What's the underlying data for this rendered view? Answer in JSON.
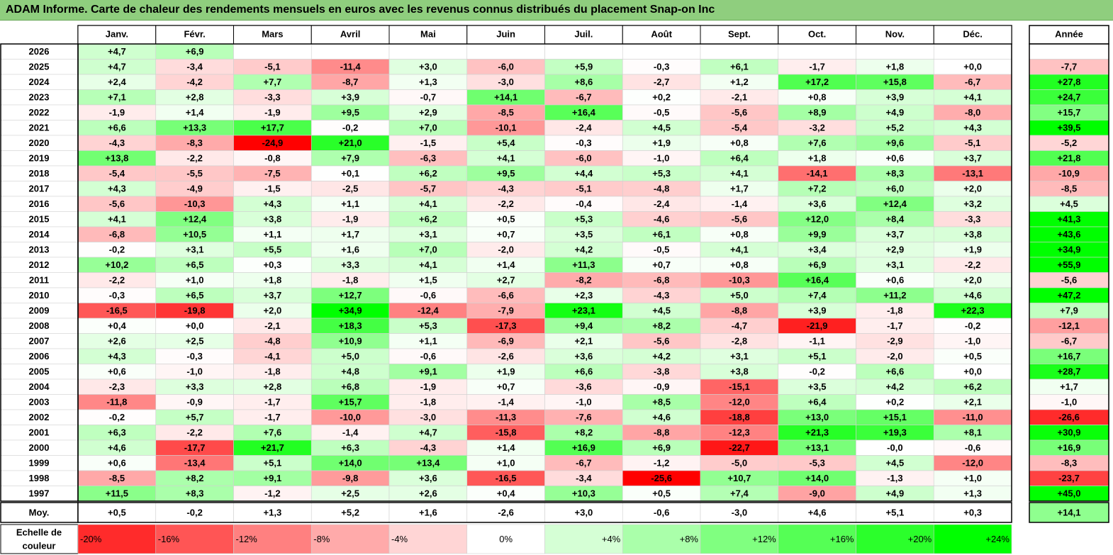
{
  "title": "ADAM Informe. Carte de chaleur des rendements mensuels en euros avec les revenus connus distribués du placement Snap-on Inc",
  "chart_data": {
    "type": "heatmap",
    "title": "ADAM Informe. Carte de chaleur des rendements mensuels en euros avec les revenus connus distribués du placement Snap-on Inc",
    "columns": [
      "Janv.",
      "Févr.",
      "Mars",
      "Avril",
      "Mai",
      "Juin",
      "Juil.",
      "Août",
      "Sept.",
      "Oct.",
      "Nov.",
      "Déc."
    ],
    "year_header": "Année",
    "rows": [
      {
        "label": "2026",
        "values": [
          "+4,7",
          "+6,9",
          null,
          null,
          null,
          null,
          null,
          null,
          null,
          null,
          null,
          null
        ],
        "year": null
      },
      {
        "label": "2025",
        "values": [
          "+4,7",
          "-3,4",
          "-5,1",
          "-11,4",
          "+3,0",
          "-6,0",
          "+5,9",
          "-0,3",
          "+6,1",
          "-1,7",
          "+1,8",
          "+0,0"
        ],
        "year": "-7,7"
      },
      {
        "label": "2024",
        "values": [
          "+2,4",
          "-4,2",
          "+7,7",
          "-8,7",
          "+1,3",
          "-3,0",
          "+8,6",
          "-2,7",
          "+1,2",
          "+17,2",
          "+15,8",
          "-6,7"
        ],
        "year": "+27,8"
      },
      {
        "label": "2023",
        "values": [
          "+7,1",
          "+2,8",
          "-3,3",
          "+3,9",
          "-0,7",
          "+14,1",
          "-6,7",
          "+0,2",
          "-2,1",
          "+0,8",
          "+3,9",
          "+4,1"
        ],
        "year": "+24,7"
      },
      {
        "label": "2022",
        "values": [
          "-1,9",
          "+1,4",
          "-1,9",
          "+9,5",
          "+2,9",
          "-8,5",
          "+16,4",
          "-0,5",
          "-5,6",
          "+8,9",
          "+4,9",
          "-8,0"
        ],
        "year": "+15,7"
      },
      {
        "label": "2021",
        "values": [
          "+6,6",
          "+13,3",
          "+17,7",
          "-0,2",
          "+7,0",
          "-10,1",
          "-2,4",
          "+4,5",
          "-5,4",
          "-3,2",
          "+5,2",
          "+4,3"
        ],
        "year": "+39,5"
      },
      {
        "label": "2020",
        "values": [
          "-4,3",
          "-8,3",
          "-24,9",
          "+21,0",
          "-1,5",
          "+5,4",
          "-0,3",
          "+1,9",
          "+0,8",
          "+7,6",
          "+9,6",
          "-5,1"
        ],
        "year": "-5,2"
      },
      {
        "label": "2019",
        "values": [
          "+13,8",
          "-2,2",
          "-0,8",
          "+7,9",
          "-6,3",
          "+4,1",
          "-6,0",
          "-1,0",
          "+6,4",
          "+1,8",
          "+0,6",
          "+3,7"
        ],
        "year": "+21,8"
      },
      {
        "label": "2018",
        "values": [
          "-5,4",
          "-5,5",
          "-7,5",
          "+0,1",
          "+6,2",
          "+9,5",
          "+4,4",
          "+5,3",
          "+4,1",
          "-14,1",
          "+8,3",
          "-13,1"
        ],
        "year": "-10,9"
      },
      {
        "label": "2017",
        "values": [
          "+4,3",
          "-4,9",
          "-1,5",
          "-2,5",
          "-5,7",
          "-4,3",
          "-5,1",
          "-4,8",
          "+1,7",
          "+7,2",
          "+6,0",
          "+2,0"
        ],
        "year": "-8,5"
      },
      {
        "label": "2016",
        "values": [
          "-5,6",
          "-10,3",
          "+4,3",
          "+1,1",
          "+4,1",
          "-2,2",
          "-0,4",
          "-2,4",
          "-1,4",
          "+3,6",
          "+12,4",
          "+3,2"
        ],
        "year": "+4,5"
      },
      {
        "label": "2015",
        "values": [
          "+4,1",
          "+12,4",
          "+3,8",
          "-1,9",
          "+6,2",
          "+0,5",
          "+5,3",
          "-4,6",
          "-5,6",
          "+12,0",
          "+8,4",
          "-3,3"
        ],
        "year": "+41,3"
      },
      {
        "label": "2014",
        "values": [
          "-6,8",
          "+10,5",
          "+1,1",
          "+1,7",
          "+3,1",
          "+0,7",
          "+3,5",
          "+6,1",
          "+0,8",
          "+9,9",
          "+3,7",
          "+3,8"
        ],
        "year": "+43,6"
      },
      {
        "label": "2013",
        "values": [
          "-0,2",
          "+3,1",
          "+5,5",
          "+1,6",
          "+7,0",
          "-2,0",
          "+4,2",
          "-0,5",
          "+4,1",
          "+3,4",
          "+2,9",
          "+1,9"
        ],
        "year": "+34,9"
      },
      {
        "label": "2012",
        "values": [
          "+10,2",
          "+6,5",
          "+0,3",
          "+3,3",
          "+4,1",
          "+1,4",
          "+11,3",
          "+0,7",
          "+0,8",
          "+6,9",
          "+3,1",
          "-2,2"
        ],
        "year": "+55,9"
      },
      {
        "label": "2011",
        "values": [
          "-2,2",
          "+1,0",
          "+1,8",
          "-1,8",
          "+1,5",
          "+2,7",
          "-8,2",
          "-6,8",
          "-10,3",
          "+16,4",
          "+0,6",
          "+2,0"
        ],
        "year": "-5,6"
      },
      {
        "label": "2010",
        "values": [
          "-0,3",
          "+6,5",
          "+3,7",
          "+12,7",
          "-0,6",
          "-6,6",
          "+2,3",
          "-4,3",
          "+5,0",
          "+7,4",
          "+11,2",
          "+4,6"
        ],
        "year": "+47,2"
      },
      {
        "label": "2009",
        "values": [
          "-16,5",
          "-19,8",
          "+2,0",
          "+34,9",
          "-12,4",
          "-7,9",
          "+23,1",
          "+4,5",
          "-8,8",
          "+3,9",
          "-1,8",
          "+22,3"
        ],
        "year": "+7,9"
      },
      {
        "label": "2008",
        "values": [
          "+0,4",
          "+0,0",
          "-2,1",
          "+18,3",
          "+5,3",
          "-17,3",
          "+9,4",
          "+8,2",
          "-4,7",
          "-21,9",
          "-1,7",
          "-0,2"
        ],
        "year": "-12,1"
      },
      {
        "label": "2007",
        "values": [
          "+2,6",
          "+2,5",
          "-4,8",
          "+10,9",
          "+1,1",
          "-6,9",
          "+2,1",
          "-5,6",
          "-2,8",
          "-1,1",
          "-2,9",
          "-1,0"
        ],
        "year": "-6,7"
      },
      {
        "label": "2006",
        "values": [
          "+4,3",
          "-0,3",
          "-4,1",
          "+5,0",
          "-0,6",
          "-2,6",
          "+3,6",
          "+4,2",
          "+3,1",
          "+5,1",
          "-2,0",
          "+0,5"
        ],
        "year": "+16,7"
      },
      {
        "label": "2005",
        "values": [
          "+0,6",
          "-1,0",
          "-1,8",
          "+4,8",
          "+9,1",
          "+1,9",
          "+6,6",
          "-3,8",
          "+3,8",
          "-0,2",
          "+6,6",
          "+0,0"
        ],
        "year": "+28,7"
      },
      {
        "label": "2004",
        "values": [
          "-2,3",
          "+3,3",
          "+2,8",
          "+6,8",
          "-1,9",
          "+0,7",
          "-3,6",
          "-0,9",
          "-15,1",
          "+3,5",
          "+4,2",
          "+6,2"
        ],
        "year": "+1,7"
      },
      {
        "label": "2003",
        "values": [
          "-11,8",
          "-0,9",
          "-1,7",
          "+15,7",
          "-1,8",
          "-1,4",
          "-1,0",
          "+8,5",
          "-12,0",
          "+6,4",
          "+0,2",
          "+2,1"
        ],
        "year": "-1,0"
      },
      {
        "label": "2002",
        "values": [
          "-0,2",
          "+5,7",
          "-1,7",
          "-10,0",
          "-3,0",
          "-11,3",
          "-7,6",
          "+4,6",
          "-18,8",
          "+13,0",
          "+15,1",
          "-11,0"
        ],
        "year": "-26,6"
      },
      {
        "label": "2001",
        "values": [
          "+6,3",
          "-2,2",
          "+7,6",
          "-1,4",
          "+4,7",
          "-15,8",
          "+8,2",
          "-8,8",
          "-12,3",
          "+21,3",
          "+19,3",
          "+8,1"
        ],
        "year": "+30,9"
      },
      {
        "label": "2000",
        "values": [
          "+4,6",
          "-17,7",
          "+21,7",
          "+6,3",
          "-4,3",
          "+1,4",
          "+16,9",
          "+6,9",
          "-22,7",
          "+13,1",
          "-0,0",
          "-0,6"
        ],
        "year": "+16,9"
      },
      {
        "label": "1999",
        "values": [
          "+0,6",
          "-13,4",
          "+5,1",
          "+14,0",
          "+13,4",
          "+1,0",
          "-6,7",
          "-1,2",
          "-5,0",
          "-5,3",
          "+4,5",
          "-12,0"
        ],
        "year": "-8,3"
      },
      {
        "label": "1998",
        "values": [
          "-8,5",
          "+8,2",
          "+9,1",
          "-9,8",
          "+3,6",
          "-16,5",
          "-3,4",
          "-25,6",
          "+10,7",
          "+14,0",
          "-1,3",
          "+1,0"
        ],
        "year": "-23,7"
      },
      {
        "label": "1997",
        "values": [
          "+11,5",
          "+8,3",
          "-1,2",
          "+2,5",
          "+2,6",
          "+0,4",
          "+10,3",
          "+0,5",
          "+7,4",
          "-9,0",
          "+4,9",
          "+1,3"
        ],
        "year": "+45,0"
      }
    ],
    "average": {
      "label": "Moy.",
      "values": [
        "+0,5",
        "-0,2",
        "+1,3",
        "+5,2",
        "+1,6",
        "-2,6",
        "+3,0",
        "-0,6",
        "-3,0",
        "+4,6",
        "+5,1",
        "+0,3"
      ],
      "year": "+14,1"
    },
    "color_scale": {
      "label_line1": "Echelle de",
      "label_line2": "couleur",
      "steps": [
        "-20%",
        "-16%",
        "-12%",
        "-8%",
        "-4%",
        "0%",
        "+4%",
        "+8%",
        "+12%",
        "+16%",
        "+20%",
        "+24%"
      ],
      "step_values": [
        -20,
        -16,
        -12,
        -8,
        -4,
        0,
        4,
        8,
        12,
        16,
        20,
        24
      ]
    },
    "colors": {
      "negative": "#ff0000",
      "neutral": "#ffffff",
      "positive": "#00ff00",
      "title_bg": "#8fce7e"
    }
  }
}
